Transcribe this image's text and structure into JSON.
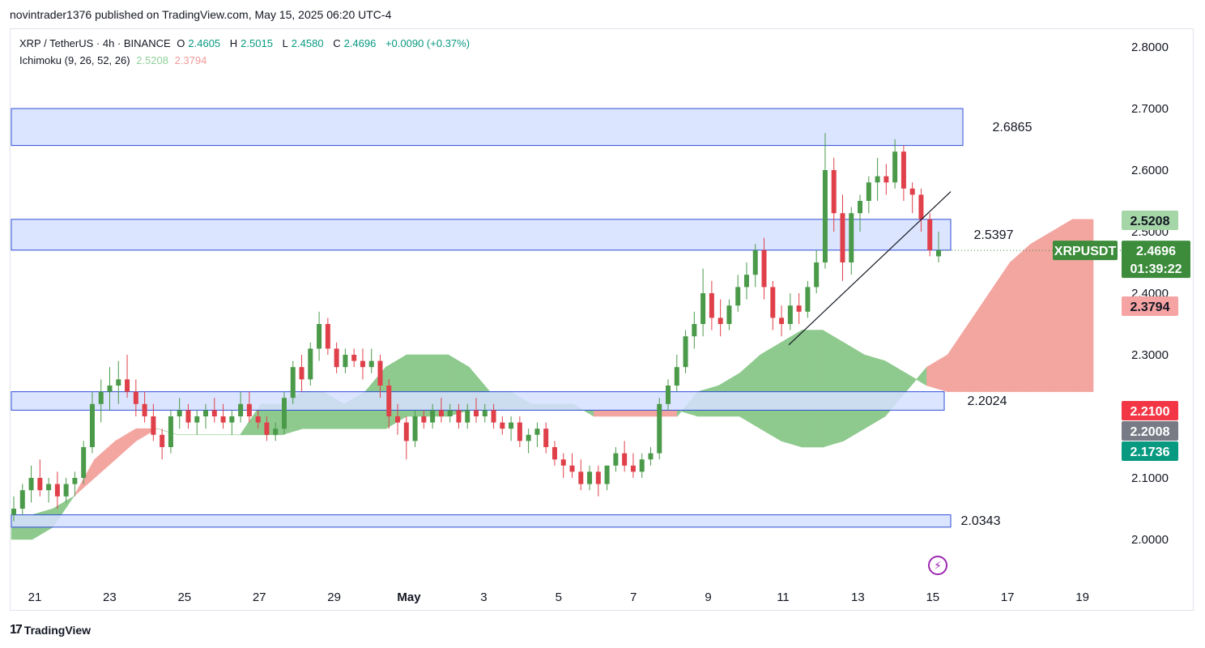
{
  "header": {
    "publisher_line": "novintrader1376 published on TradingView.com, May 15, 2025 06:20 UTC-4"
  },
  "legend": {
    "symbol": "XRP / TetherUS · 4h · BINANCE",
    "open_label": "O",
    "open": "2.4605",
    "high_label": "H",
    "high": "2.5015",
    "low_label": "L",
    "low": "2.4580",
    "close_label": "C",
    "close": "2.4696",
    "change": "+0.0090 (+0.37%)",
    "indicator": "Ichimoku (9, 26, 52, 26)",
    "indicator_v1": "2.5208",
    "indicator_v2": "2.3794"
  },
  "footer": {
    "brand": "TradingView",
    "logo_glyph": "17"
  },
  "colors": {
    "bull": "#4a9a4a",
    "bear": "#e0404a",
    "cloud_green": "#8ec98e",
    "cloud_red": "#f3a5a0",
    "zone_fill": "#d6e0ff",
    "zone_border": "#2f4fd6",
    "price_tag": "#3c8c3c",
    "tag_red": "#f23645",
    "tag_grey": "#787b86",
    "tag_teal": "#089981",
    "tag_light_green": "#a5d6a7",
    "tag_light_red": "#f5a3a3"
  },
  "chart_data": {
    "type": "candlestick",
    "y_ticks": [
      "2.8000",
      "2.7000",
      "2.6000",
      "2.5000",
      "2.4000",
      "2.3000",
      "2.1000",
      "2.0000"
    ],
    "ylim": [
      1.93,
      2.87
    ],
    "x_ticks": [
      "21",
      "23",
      "25",
      "27",
      "29",
      "May",
      "3",
      "5",
      "7",
      "9",
      "11",
      "13",
      "15",
      "17",
      "19"
    ],
    "candles": [
      [
        2.04,
        2.07,
        2.03,
        2.05
      ],
      [
        2.05,
        2.09,
        2.04,
        2.08
      ],
      [
        2.08,
        2.12,
        2.06,
        2.1
      ],
      [
        2.1,
        2.13,
        2.07,
        2.08
      ],
      [
        2.08,
        2.1,
        2.06,
        2.09
      ],
      [
        2.09,
        2.11,
        2.05,
        2.07
      ],
      [
        2.07,
        2.1,
        2.06,
        2.09
      ],
      [
        2.09,
        2.11,
        2.07,
        2.1
      ],
      [
        2.1,
        2.16,
        2.09,
        2.15
      ],
      [
        2.15,
        2.24,
        2.14,
        2.22
      ],
      [
        2.22,
        2.26,
        2.19,
        2.24
      ],
      [
        2.24,
        2.28,
        2.21,
        2.25
      ],
      [
        2.25,
        2.29,
        2.22,
        2.26
      ],
      [
        2.26,
        2.3,
        2.23,
        2.24
      ],
      [
        2.24,
        2.26,
        2.2,
        2.22
      ],
      [
        2.22,
        2.24,
        2.19,
        2.2
      ],
      [
        2.2,
        2.22,
        2.16,
        2.17
      ],
      [
        2.17,
        2.18,
        2.13,
        2.15
      ],
      [
        2.15,
        2.21,
        2.14,
        2.2
      ],
      [
        2.2,
        2.23,
        2.18,
        2.21
      ],
      [
        2.21,
        2.22,
        2.18,
        2.19
      ],
      [
        2.19,
        2.21,
        2.17,
        2.2
      ],
      [
        2.2,
        2.22,
        2.18,
        2.21
      ],
      [
        2.21,
        2.23,
        2.19,
        2.2
      ],
      [
        2.2,
        2.22,
        2.18,
        2.19
      ],
      [
        2.19,
        2.21,
        2.17,
        2.2
      ],
      [
        2.2,
        2.24,
        2.19,
        2.22
      ],
      [
        2.22,
        2.24,
        2.19,
        2.2
      ],
      [
        2.2,
        2.21,
        2.18,
        2.19
      ],
      [
        2.19,
        2.2,
        2.16,
        2.17
      ],
      [
        2.17,
        2.19,
        2.16,
        2.18
      ],
      [
        2.18,
        2.24,
        2.17,
        2.23
      ],
      [
        2.23,
        2.29,
        2.22,
        2.28
      ],
      [
        2.28,
        2.3,
        2.24,
        2.26
      ],
      [
        2.26,
        2.32,
        2.25,
        2.31
      ],
      [
        2.31,
        2.37,
        2.29,
        2.35
      ],
      [
        2.35,
        2.36,
        2.3,
        2.31
      ],
      [
        2.31,
        2.32,
        2.27,
        2.28
      ],
      [
        2.28,
        2.31,
        2.27,
        2.3
      ],
      [
        2.3,
        2.31,
        2.28,
        2.29
      ],
      [
        2.29,
        2.31,
        2.26,
        2.28
      ],
      [
        2.28,
        2.31,
        2.27,
        2.29
      ],
      [
        2.29,
        2.3,
        2.23,
        2.25
      ],
      [
        2.25,
        2.26,
        2.18,
        2.2
      ],
      [
        2.2,
        2.22,
        2.17,
        2.19
      ],
      [
        2.19,
        2.2,
        2.13,
        2.16
      ],
      [
        2.16,
        2.21,
        2.15,
        2.2
      ],
      [
        2.2,
        2.21,
        2.18,
        2.19
      ],
      [
        2.19,
        2.22,
        2.18,
        2.21
      ],
      [
        2.21,
        2.23,
        2.19,
        2.2
      ],
      [
        2.2,
        2.22,
        2.19,
        2.21
      ],
      [
        2.21,
        2.22,
        2.18,
        2.19
      ],
      [
        2.19,
        2.22,
        2.18,
        2.21
      ],
      [
        2.21,
        2.23,
        2.19,
        2.2
      ],
      [
        2.2,
        2.22,
        2.19,
        2.21
      ],
      [
        2.21,
        2.22,
        2.18,
        2.19
      ],
      [
        2.19,
        2.2,
        2.17,
        2.18
      ],
      [
        2.18,
        2.2,
        2.16,
        2.19
      ],
      [
        2.19,
        2.2,
        2.15,
        2.16
      ],
      [
        2.16,
        2.18,
        2.14,
        2.17
      ],
      [
        2.17,
        2.19,
        2.15,
        2.18
      ],
      [
        2.18,
        2.19,
        2.14,
        2.15
      ],
      [
        2.15,
        2.16,
        2.12,
        2.13
      ],
      [
        2.13,
        2.14,
        2.1,
        2.12
      ],
      [
        2.12,
        2.14,
        2.1,
        2.11
      ],
      [
        2.11,
        2.13,
        2.08,
        2.09
      ],
      [
        2.09,
        2.12,
        2.08,
        2.11
      ],
      [
        2.11,
        2.12,
        2.07,
        2.09
      ],
      [
        2.09,
        2.12,
        2.08,
        2.12
      ],
      [
        2.12,
        2.15,
        2.11,
        2.14
      ],
      [
        2.14,
        2.16,
        2.11,
        2.12
      ],
      [
        2.12,
        2.14,
        2.1,
        2.11
      ],
      [
        2.11,
        2.14,
        2.1,
        2.13
      ],
      [
        2.13,
        2.15,
        2.12,
        2.14
      ],
      [
        2.14,
        2.23,
        2.13,
        2.22
      ],
      [
        2.22,
        2.26,
        2.21,
        2.25
      ],
      [
        2.25,
        2.3,
        2.24,
        2.28
      ],
      [
        2.28,
        2.34,
        2.27,
        2.33
      ],
      [
        2.33,
        2.37,
        2.31,
        2.35
      ],
      [
        2.35,
        2.44,
        2.33,
        2.4
      ],
      [
        2.4,
        2.42,
        2.34,
        2.36
      ],
      [
        2.36,
        2.39,
        2.33,
        2.35
      ],
      [
        2.35,
        2.39,
        2.34,
        2.38
      ],
      [
        2.38,
        2.43,
        2.37,
        2.41
      ],
      [
        2.41,
        2.45,
        2.39,
        2.43
      ],
      [
        2.43,
        2.48,
        2.41,
        2.47
      ],
      [
        2.47,
        2.49,
        2.39,
        2.41
      ],
      [
        2.41,
        2.42,
        2.34,
        2.36
      ],
      [
        2.36,
        2.38,
        2.33,
        2.35
      ],
      [
        2.35,
        2.4,
        2.34,
        2.38
      ],
      [
        2.38,
        2.4,
        2.35,
        2.37
      ],
      [
        2.37,
        2.42,
        2.36,
        2.41
      ],
      [
        2.41,
        2.47,
        2.4,
        2.45
      ],
      [
        2.45,
        2.66,
        2.44,
        2.6
      ],
      [
        2.6,
        2.62,
        2.5,
        2.53
      ],
      [
        2.53,
        2.56,
        2.42,
        2.45
      ],
      [
        2.45,
        2.54,
        2.43,
        2.53
      ],
      [
        2.53,
        2.56,
        2.5,
        2.55
      ],
      [
        2.55,
        2.59,
        2.53,
        2.58
      ],
      [
        2.58,
        2.62,
        2.55,
        2.59
      ],
      [
        2.59,
        2.61,
        2.56,
        2.58
      ],
      [
        2.58,
        2.65,
        2.57,
        2.63
      ],
      [
        2.63,
        2.64,
        2.55,
        2.57
      ],
      [
        2.57,
        2.58,
        2.53,
        2.56
      ],
      [
        2.56,
        2.57,
        2.5,
        2.52
      ],
      [
        2.52,
        2.53,
        2.46,
        2.47
      ],
      [
        2.46,
        2.5,
        2.45,
        2.47
      ]
    ],
    "cloud": {
      "span_a": [
        2.04,
        2.04,
        2.05,
        2.07,
        2.1,
        2.13,
        2.16,
        2.18,
        2.17,
        2.17,
        2.17,
        2.17,
        2.22,
        2.22,
        2.24,
        2.24,
        2.22,
        2.24,
        2.28,
        2.3,
        2.3,
        2.3,
        2.28,
        2.24,
        2.24,
        2.22,
        2.22,
        2.22,
        2.2,
        2.2,
        2.2,
        2.2,
        2.2,
        2.24,
        2.25,
        2.27,
        2.3,
        2.32,
        2.34,
        2.34,
        2.32,
        2.3,
        2.29,
        2.27,
        2.25,
        2.24,
        2.24,
        2.24,
        2.24,
        2.24,
        2.24,
        2.24,
        2.24
      ],
      "span_b": [
        2.0,
        2.0,
        2.02,
        2.07,
        2.13,
        2.16,
        2.18,
        2.18,
        2.17,
        2.17,
        2.17,
        2.17,
        2.17,
        2.17,
        2.18,
        2.18,
        2.18,
        2.18,
        2.18,
        2.2,
        2.2,
        2.2,
        2.21,
        2.21,
        2.21,
        2.21,
        2.21,
        2.21,
        2.21,
        2.21,
        2.21,
        2.21,
        2.21,
        2.2,
        2.2,
        2.2,
        2.18,
        2.16,
        2.15,
        2.15,
        2.16,
        2.18,
        2.2,
        2.24,
        2.28,
        2.3,
        2.35,
        2.4,
        2.45,
        2.48,
        2.5,
        2.52,
        2.52
      ]
    },
    "zones": [
      {
        "label": "2.6865",
        "top": 2.7,
        "bottom": 2.64
      },
      {
        "label": "2.5397",
        "top": 2.52,
        "bottom": 2.47
      },
      {
        "label": "2.2024",
        "top": 2.24,
        "bottom": 2.21
      },
      {
        "label": "2.0343",
        "top": 2.04,
        "bottom": 2.02
      }
    ],
    "trendline": {
      "from": [
        2.316
      ],
      "to": [
        2.565
      ]
    },
    "current_price": 2.4696,
    "price_tags": [
      {
        "label": "2.5208",
        "value": 2.5208,
        "style": "light_green"
      },
      {
        "label": "XRPUSDT",
        "value": 2.4696,
        "style": "price"
      },
      {
        "label": "2.4696",
        "value": 2.4696,
        "style": "price"
      },
      {
        "label": "01:39:22",
        "value": 2.4696,
        "style": "price"
      },
      {
        "label": "2.3794",
        "value": 2.3794,
        "style": "light_red"
      },
      {
        "label": "2.2100",
        "value": 2.21,
        "style": "red"
      },
      {
        "label": "2.2008",
        "value": 2.2008,
        "style": "grey"
      },
      {
        "label": "2.1736",
        "value": 2.1736,
        "style": "teal"
      }
    ]
  }
}
